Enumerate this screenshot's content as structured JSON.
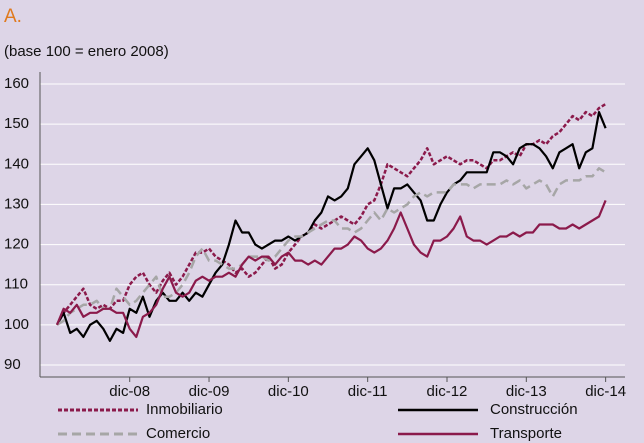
{
  "chart_data": {
    "type": "line",
    "title": "A.",
    "subtitle": "(base 100 = enero 2008)",
    "categories": [
      null,
      null,
      null,
      null,
      null,
      null,
      null,
      null,
      null,
      null,
      null,
      "dic-08",
      null,
      null,
      null,
      null,
      null,
      null,
      null,
      null,
      null,
      null,
      null,
      "dic-09",
      null,
      null,
      null,
      null,
      null,
      null,
      null,
      null,
      null,
      null,
      null,
      "dic-10",
      null,
      null,
      null,
      null,
      null,
      null,
      null,
      null,
      null,
      null,
      null,
      "dic-11",
      null,
      null,
      null,
      null,
      null,
      null,
      null,
      null,
      null,
      null,
      null,
      "dic-12",
      null,
      null,
      null,
      null,
      null,
      null,
      null,
      null,
      null,
      null,
      null,
      "dic-13",
      null,
      null,
      null,
      null,
      null,
      null,
      null,
      null,
      null,
      null,
      null,
      "dic-14"
    ],
    "series": [
      {
        "name": "Inmobiliario",
        "color": "#8b1a4b",
        "style": "dashed",
        "values": [
          100,
          103,
          105,
          107,
          109,
          105,
          104,
          105,
          104,
          106,
          106,
          110,
          112,
          113,
          110,
          108,
          111,
          113,
          110,
          112,
          115,
          118,
          118,
          119,
          117,
          116,
          115,
          113,
          114,
          112,
          113,
          115,
          117,
          114,
          115,
          118,
          120,
          122,
          123,
          125,
          124,
          125,
          126,
          127,
          126,
          125,
          127,
          130,
          131,
          135,
          140,
          139,
          138,
          137,
          139,
          141,
          144,
          140,
          141,
          142,
          141,
          140,
          141,
          141,
          140,
          139,
          141,
          141,
          142,
          143,
          142,
          145,
          145,
          146,
          145,
          147,
          148,
          150,
          152,
          151,
          153,
          152,
          154,
          155
        ]
      },
      {
        "name": "Construcción",
        "color": "#000000",
        "style": "solid",
        "values": [
          100,
          103,
          98,
          99,
          97,
          100,
          101,
          99,
          96,
          99,
          98,
          104,
          103,
          107,
          102,
          106,
          108,
          106,
          106,
          108,
          106,
          108,
          107,
          110,
          113,
          115,
          120,
          126,
          123,
          123,
          120,
          119,
          120,
          121,
          121,
          122,
          121,
          122,
          123,
          126,
          128,
          132,
          131,
          132,
          134,
          140,
          142,
          144,
          141,
          135,
          129,
          134,
          134,
          135,
          133,
          131,
          126,
          126,
          130,
          133,
          135,
          136,
          138,
          138,
          138,
          138,
          143,
          143,
          142,
          140,
          144,
          145,
          145,
          144,
          142,
          139,
          143,
          144,
          145,
          139,
          143,
          144,
          153,
          149
        ]
      },
      {
        "name": "Comercio",
        "color": "#a6a6a6",
        "style": "dashed",
        "values": [
          100,
          101,
          103,
          104,
          105,
          105,
          106,
          104,
          104,
          109,
          107,
          105,
          106,
          108,
          110,
          112,
          107,
          107,
          108,
          110,
          113,
          117,
          119,
          116,
          116,
          115,
          114,
          114,
          115,
          117,
          117,
          117,
          116,
          117,
          119,
          121,
          122,
          122,
          123,
          124,
          125,
          126,
          126,
          124,
          124,
          123,
          124,
          126,
          128,
          126,
          129,
          128,
          129,
          130,
          132,
          133,
          132,
          133,
          133,
          133,
          135,
          135,
          135,
          134,
          135,
          135,
          135,
          135,
          136,
          135,
          136,
          134,
          135,
          136,
          135,
          132,
          135,
          136,
          136,
          136,
          137,
          137,
          139,
          138
        ]
      },
      {
        "name": "Transporte",
        "color": "#8b1a4b",
        "style": "solid",
        "values": [
          100,
          104,
          103,
          105,
          102,
          103,
          103,
          104,
          104,
          103,
          103,
          99,
          97,
          102,
          103,
          105,
          109,
          112,
          108,
          107,
          108,
          111,
          112,
          111,
          112,
          112,
          113,
          112,
          115,
          117,
          116,
          117,
          117,
          115,
          117,
          118,
          116,
          116,
          115,
          116,
          115,
          117,
          119,
          119,
          120,
          122,
          121,
          119,
          118,
          119,
          121,
          124,
          128,
          124,
          120,
          118,
          117,
          121,
          121,
          122,
          124,
          127,
          122,
          121,
          121,
          120,
          121,
          122,
          122,
          123,
          122,
          123,
          123,
          125,
          125,
          125,
          124,
          124,
          125,
          124,
          125,
          126,
          127,
          131
        ]
      }
    ],
    "ylim": [
      87,
      163
    ],
    "yticks": [
      90,
      100,
      110,
      120,
      130,
      140,
      150,
      160
    ],
    "grid": true
  }
}
